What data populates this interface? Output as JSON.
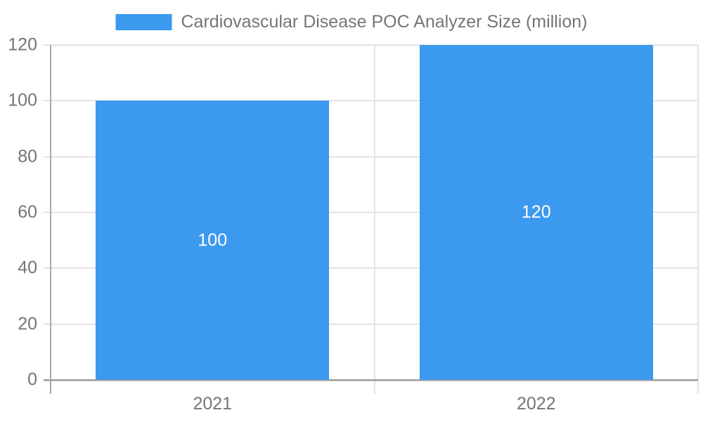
{
  "chart_data": {
    "type": "bar",
    "title": "Cardiovascular Disease POC Analyzer Size (million)",
    "categories": [
      "2021",
      "2022"
    ],
    "values": [
      100,
      120
    ],
    "bar_value_labels": [
      "100",
      "120"
    ],
    "y_ticks": [
      0,
      20,
      40,
      60,
      80,
      100,
      120
    ],
    "ylim": [
      0,
      120
    ],
    "xlabel": "",
    "ylabel": "",
    "grid": true,
    "legend_position": "top",
    "colors": {
      "bar": "#3b99ee",
      "text": "#757575",
      "grid_line": "#e4e4e4",
      "axis_line": "#aaaaaa",
      "bar_label": "#ffffff",
      "background": "#ffffff"
    }
  }
}
